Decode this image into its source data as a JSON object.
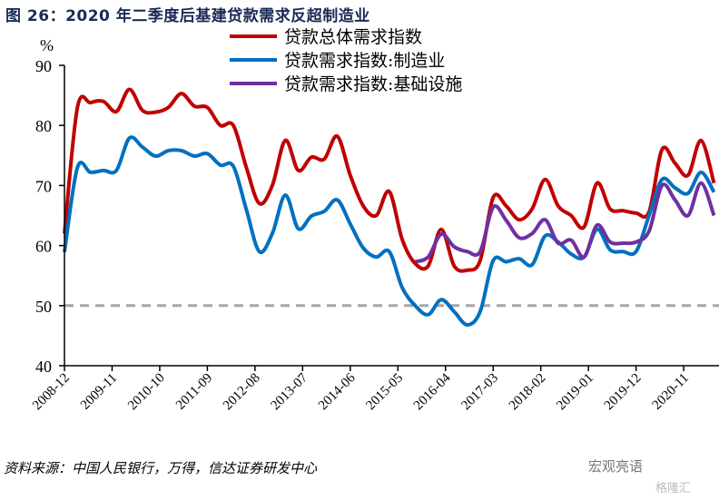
{
  "title": "图 26：2020 年二季度后基建贷款需求反超制造业",
  "source": "资料来源：中国人民银行，万得，信达证券研发中心",
  "watermark": "宏观亮语",
  "watermark2": "格隆汇",
  "chart_data": {
    "type": "line",
    "title": "图 26：2020 年二季度后基建贷款需求反超制造业",
    "ylabel": "%",
    "xlabel": "",
    "ylim": [
      40,
      90
    ],
    "yticks": [
      40,
      50,
      60,
      70,
      80,
      90
    ],
    "xlim": [
      "2008-12",
      "2021-06"
    ],
    "xticks": [
      "2008-12",
      "2009-11",
      "2010-10",
      "2011-09",
      "2012-08",
      "2013-07",
      "2014-06",
      "2015-05",
      "2016-04",
      "2017-03",
      "2018-02",
      "2019-01",
      "2019-12",
      "2020-11"
    ],
    "x_frequency": "quarterly, starting 2008-12",
    "reference_line": {
      "value": 50,
      "style": "dashed",
      "color": "#a6a6a6"
    },
    "legend_position": "top-center",
    "series": [
      {
        "name": "贷款总体需求指数",
        "color": "#c00000",
        "start_index": 0,
        "values": [
          62,
          83,
          83.8,
          84,
          82.3,
          86,
          82.5,
          82.2,
          83,
          85.3,
          83.2,
          83,
          80,
          80,
          73,
          67,
          70,
          77.5,
          72.5,
          74.7,
          74.4,
          78.2,
          71.7,
          66.6,
          65,
          69,
          61,
          57,
          56.6,
          62.7,
          56.6,
          55.9,
          57.5,
          68,
          66.6,
          64.3,
          66.1,
          71,
          66.6,
          65,
          63.1,
          70.4,
          66.1,
          65.8,
          65.4,
          65.6,
          76,
          73.7,
          71.7,
          77.5,
          70.4
        ]
      },
      {
        "name": "贷款需求指数:制造业",
        "color": "#0070c0",
        "start_index": 0,
        "values": [
          58.9,
          73,
          72.2,
          72.5,
          72.5,
          77.9,
          76.4,
          74.9,
          75.8,
          75.8,
          74.9,
          75.3,
          73.4,
          73.2,
          66,
          59,
          62,
          68.4,
          62.8,
          64.9,
          65.7,
          67.6,
          63.6,
          59.6,
          58.1,
          59,
          53,
          50,
          48.5,
          51,
          49,
          46.8,
          49,
          57.5,
          57.3,
          57.8,
          56.8,
          61.6,
          60.6,
          58.6,
          58.1,
          62.7,
          59.3,
          59,
          59,
          65,
          71,
          69.6,
          68.7,
          72.2,
          68.9
        ]
      },
      {
        "name": "贷款需求指数:基础设施",
        "color": "#7030a0",
        "start_index": 27,
        "values": [
          57.3,
          58.1,
          61.9,
          59.8,
          59,
          59,
          66.4,
          64.2,
          61.3,
          62,
          64.3,
          60.4,
          60.9,
          58.1,
          63.4,
          60.6,
          60.4,
          60.6,
          62.4,
          70,
          67.6,
          65,
          70.4,
          65
        ]
      }
    ]
  }
}
